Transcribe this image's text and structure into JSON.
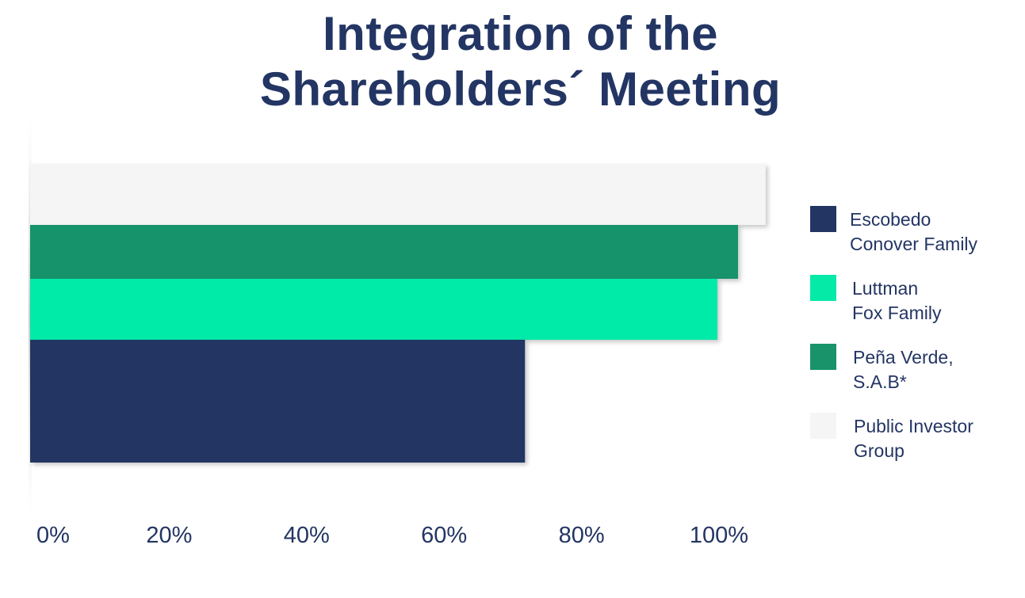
{
  "title_line1": "Integration of the",
  "title_line2": "Shareholders´ Meeting",
  "chart_data": {
    "type": "bar",
    "orientation": "horizontal",
    "stacked": false,
    "title": "Integration of the Shareholders´ Meeting",
    "xlabel": "",
    "ylabel": "",
    "xlim": [
      0,
      100
    ],
    "x_ticks": [
      "0%",
      "20%",
      "40%",
      "60%",
      "80%",
      "100%"
    ],
    "legend_position": "right",
    "grid": false,
    "series": [
      {
        "name": "Escobedo Conover Family",
        "label_lines": [
          "Escobedo",
          "Conover Family"
        ],
        "value": 72,
        "color": "#233563"
      },
      {
        "name": "Luttman Fox Family",
        "label_lines": [
          "Luttman",
          "Fox Family"
        ],
        "value": 100,
        "color": "#06EAA8"
      },
      {
        "name": "Peña Verde, S.A.B*",
        "label_lines": [
          "Peña Verde,",
          "S.A.B*"
        ],
        "value": 103,
        "color": "#18936A"
      },
      {
        "name": "Public Investor Group",
        "label_lines": [
          "Public Investor",
          "Group"
        ],
        "value": 107,
        "color": "#F5F5F5"
      }
    ]
  }
}
